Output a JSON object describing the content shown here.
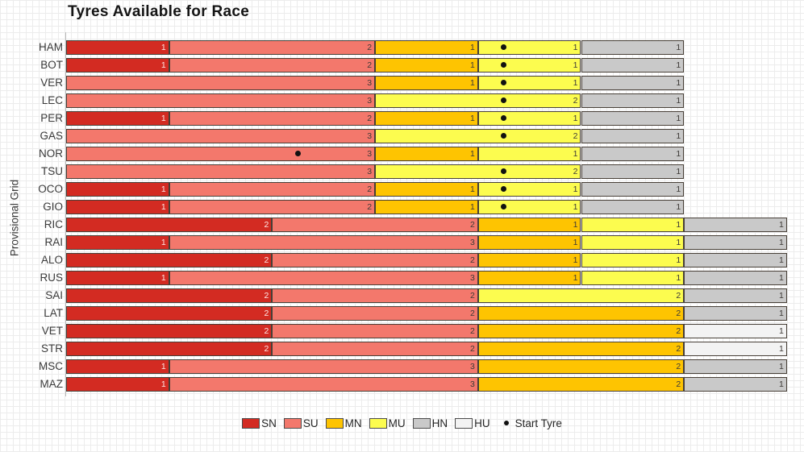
{
  "chart_data": {
    "type": "bar",
    "orientation": "horizontal-stacked",
    "title": "Tyres Available for Race",
    "ylabel": "Provisional Grid",
    "xlabel": "",
    "xlim": [
      0,
      7
    ],
    "grid": "fine graph-paper background",
    "legend_position": "bottom-center",
    "categories": [
      "HAM",
      "BOT",
      "VER",
      "LEC",
      "PER",
      "GAS",
      "NOR",
      "TSU",
      "OCO",
      "GIO",
      "RIC",
      "RAI",
      "ALO",
      "RUS",
      "SAI",
      "LAT",
      "VET",
      "STR",
      "MSC",
      "MAZ"
    ],
    "series": [
      {
        "name": "SN",
        "color": "#d32b22",
        "values": [
          1,
          1,
          0,
          0,
          1,
          0,
          0,
          0,
          1,
          1,
          2,
          1,
          2,
          1,
          2,
          2,
          2,
          2,
          1,
          1
        ]
      },
      {
        "name": "SU",
        "color": "#f3786c",
        "values": [
          2,
          2,
          3,
          3,
          2,
          3,
          3,
          3,
          2,
          2,
          2,
          3,
          2,
          3,
          2,
          2,
          2,
          2,
          3,
          3
        ]
      },
      {
        "name": "MN",
        "color": "#fec401",
        "values": [
          1,
          1,
          1,
          0,
          1,
          0,
          1,
          0,
          1,
          1,
          1,
          1,
          1,
          1,
          0,
          2,
          2,
          2,
          2,
          2
        ]
      },
      {
        "name": "MU",
        "color": "#fcfc4f",
        "values": [
          1,
          1,
          1,
          2,
          1,
          2,
          1,
          2,
          1,
          1,
          1,
          1,
          1,
          1,
          2,
          0,
          0,
          0,
          0,
          0
        ]
      },
      {
        "name": "HN",
        "color": "#c9c9c9",
        "values": [
          1,
          1,
          1,
          1,
          1,
          1,
          1,
          1,
          1,
          1,
          1,
          1,
          1,
          1,
          1,
          1,
          0,
          0,
          1,
          1
        ]
      },
      {
        "name": "HU",
        "color": "#f3f3f3",
        "values": [
          0,
          0,
          0,
          0,
          0,
          0,
          0,
          0,
          0,
          0,
          0,
          0,
          0,
          0,
          0,
          0,
          1,
          1,
          0,
          0
        ]
      }
    ],
    "totals_per_driver": [
      6,
      6,
      6,
      6,
      6,
      6,
      6,
      6,
      6,
      6,
      7,
      7,
      7,
      7,
      7,
      7,
      7,
      7,
      7,
      7
    ],
    "start_tyre_marker": {
      "label": "Start Tyre",
      "symbol": "black dot",
      "positions_units": [
        4.25,
        4.25,
        4.25,
        4.25,
        4.25,
        4.25,
        2.25,
        4.25,
        4.25,
        4.25,
        null,
        null,
        null,
        null,
        null,
        null,
        null,
        null,
        null,
        null
      ]
    }
  }
}
